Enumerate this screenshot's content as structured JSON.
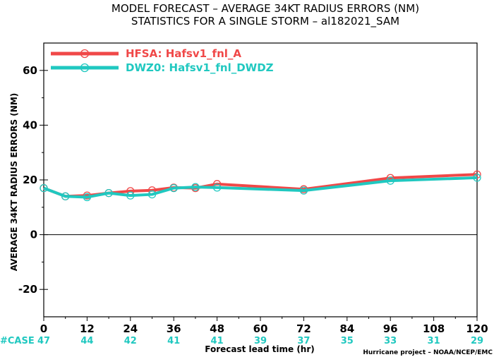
{
  "chart_data": {
    "type": "line",
    "title_line1": "MODEL FORECAST – AVERAGE 34KT RADIUS ERRORS (NM)",
    "title_line2": "STATISTICS FOR A SINGLE STORM – al182021_SAM",
    "xlabel": "Forecast lead time (hr)",
    "ylabel": "AVERAGE 34KT RADIUS ERRORS (NM)",
    "xlim": [
      0,
      120
    ],
    "ylim": [
      -30,
      70
    ],
    "xticks": [
      "0",
      "12",
      "24",
      "36",
      "48",
      "60",
      "72",
      "84",
      "96",
      "108",
      "120"
    ],
    "yticks": [
      "60",
      "40",
      "20",
      "0",
      "-20"
    ],
    "zero_line": true,
    "legend_position": "top-left",
    "series": [
      {
        "name": "HFSA: Hafsv1_fnl_A",
        "color": "#f04848",
        "points": [
          [
            0,
            17
          ],
          [
            6,
            14
          ],
          [
            12,
            14.3
          ],
          [
            18,
            15.2
          ],
          [
            24,
            15.9
          ],
          [
            30,
            16.2
          ],
          [
            36,
            17.2
          ],
          [
            42,
            17
          ],
          [
            48,
            18.5
          ],
          [
            72,
            16.6
          ],
          [
            96,
            20.7
          ],
          [
            120,
            22
          ]
        ]
      },
      {
        "name": "DWZ0: Hafsv1_fnl_DWDZ",
        "color": "#20c8c0",
        "points": [
          [
            0,
            17
          ],
          [
            6,
            14
          ],
          [
            12,
            13.7
          ],
          [
            18,
            15.2
          ],
          [
            24,
            14.3
          ],
          [
            30,
            14.7
          ],
          [
            36,
            17
          ],
          [
            42,
            17.4
          ],
          [
            48,
            17.2
          ],
          [
            72,
            16.1
          ],
          [
            96,
            19.7
          ],
          [
            120,
            20.8
          ]
        ]
      }
    ],
    "case_label": "#CASE",
    "case_counts": [
      {
        "x": 0,
        "n": "47"
      },
      {
        "x": 12,
        "n": "44"
      },
      {
        "x": 24,
        "n": "42"
      },
      {
        "x": 36,
        "n": "41"
      },
      {
        "x": 48,
        "n": "41"
      },
      {
        "x": 60,
        "n": "39"
      },
      {
        "x": 72,
        "n": "37"
      },
      {
        "x": 84,
        "n": "35"
      },
      {
        "x": 96,
        "n": "33"
      },
      {
        "x": 108,
        "n": "31"
      },
      {
        "x": 120,
        "n": "29"
      }
    ],
    "case_color": "#20c8c0",
    "credit": "Hurricane project – NOAA/NCEP/EMC"
  }
}
